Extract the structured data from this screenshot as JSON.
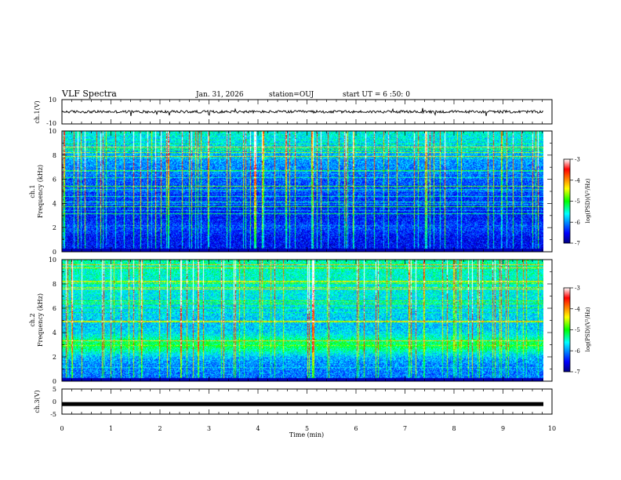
{
  "header": {
    "title": "VLF Spectra",
    "date": "Jan. 31, 2026",
    "station": "station=OUJ",
    "start": "start UT =  6 :50: 0"
  },
  "chart_data": [
    {
      "type": "line",
      "name": "ch1-waveform",
      "ylabel": "ch.1(V)",
      "ylim": [
        -10,
        10
      ],
      "yticks": [
        "10",
        "-10"
      ],
      "baseline": 0,
      "trace_description_value": 0
    },
    {
      "type": "heatmap",
      "name": "ch1-spectrogram",
      "ylabel_lines": [
        "ch.1",
        "Frequency (kHz)"
      ],
      "ylim": [
        0,
        10
      ],
      "yticks": [
        "0",
        "2",
        "4",
        "6",
        "8",
        "10"
      ],
      "colorbar": {
        "label": "log(PSD)(V²/Hz)",
        "range": [
          -7,
          -3
        ],
        "ticks": [
          "-3",
          "-4",
          "-5",
          "-6",
          "-7"
        ]
      }
    },
    {
      "type": "heatmap",
      "name": "ch2-spectrogram",
      "ylabel_lines": [
        "ch.2",
        "Frequency (kHz)"
      ],
      "ylim": [
        0,
        10
      ],
      "yticks": [
        "0",
        "2",
        "4",
        "6",
        "8",
        "10"
      ],
      "colorbar": {
        "label": "log(PSD)(V²/Hz)",
        "range": [
          -7,
          -3
        ],
        "ticks": [
          "-3",
          "-4",
          "-5",
          "-6",
          "-7"
        ]
      }
    },
    {
      "type": "line",
      "name": "ch3-waveform",
      "ylabel": "ch.3(V)",
      "ylim": [
        -5,
        5
      ],
      "yticks": [
        "5",
        "0",
        "-5"
      ],
      "baseline": -1
    }
  ],
  "xaxis": {
    "label": "Time (min)",
    "range": [
      0,
      10
    ],
    "ticks": [
      "0",
      "1",
      "2",
      "3",
      "4",
      "5",
      "6",
      "7",
      "8",
      "9",
      "10"
    ]
  }
}
